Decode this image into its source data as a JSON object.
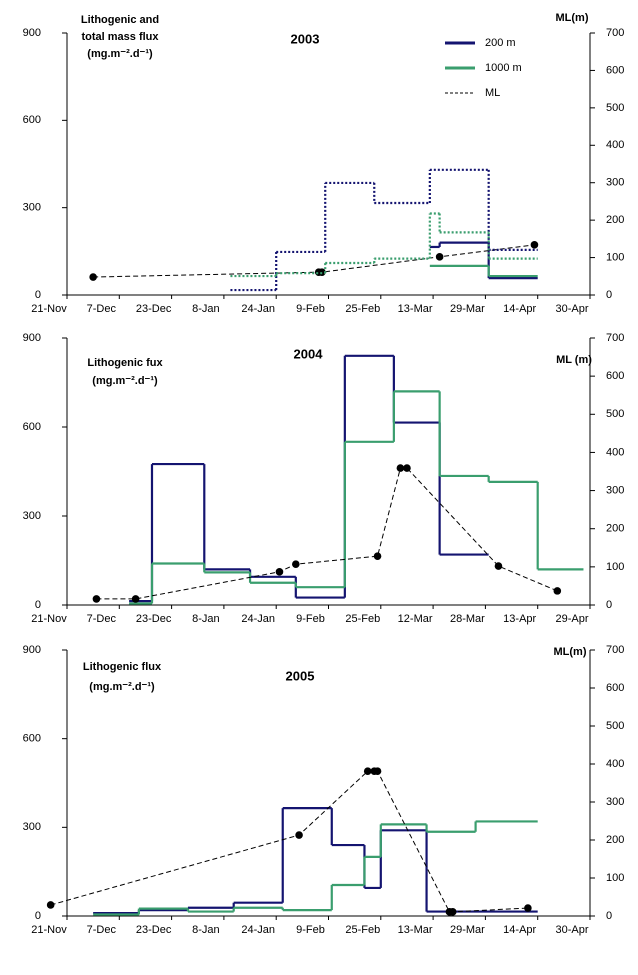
{
  "chart_data": [
    {
      "type": "step",
      "title": "2003",
      "ylabel": [
        "Lithogenic and",
        "total mass flux",
        "(mg.m⁻².d⁻¹)"
      ],
      "y2label": "ML(m)",
      "xlim": [
        0,
        160
      ],
      "xticks": [
        {
          "value": 0,
          "label": "21-Nov"
        },
        {
          "value": 16,
          "label": "7-Dec"
        },
        {
          "value": 32,
          "label": "23-Dec"
        },
        {
          "value": 48,
          "label": "8-Jan"
        },
        {
          "value": 64,
          "label": "24-Jan"
        },
        {
          "value": 80,
          "label": "9-Feb"
        },
        {
          "value": 96,
          "label": "25-Feb"
        },
        {
          "value": 112,
          "label": "13-Mar"
        },
        {
          "value": 128,
          "label": "29-Mar"
        },
        {
          "value": 144,
          "label": "14-Apr"
        },
        {
          "value": 160,
          "label": "30-Apr"
        }
      ],
      "ylim": [
        0,
        900
      ],
      "yticks": [
        0,
        300,
        600,
        900
      ],
      "y2lim": [
        0,
        700
      ],
      "y2ticks": [
        0,
        100,
        200,
        300,
        400,
        500,
        600,
        700
      ],
      "legend": "upper right",
      "series": [
        {
          "name": "200 m",
          "color": "#141470",
          "style": "solid",
          "bins": [
            111,
            114,
            129,
            144
          ],
          "values": [
            165,
            180,
            58
          ]
        },
        {
          "name": "1000 m",
          "color": "#3a9e6e",
          "style": "solid",
          "bins": [
            111,
            129,
            144
          ],
          "values": [
            100,
            65
          ]
        },
        {
          "name": "ML",
          "color": "#000000",
          "style": "dashed-markers",
          "axis": "y2",
          "x": [
            8,
            77,
            78,
            114,
            143
          ],
          "values": [
            48,
            61,
            61,
            102,
            134
          ]
        },
        {
          "color": "#141470",
          "style": "dotted",
          "bins": [
            50,
            64,
            79,
            94,
            111,
            129,
            144
          ],
          "values": [
            17,
            148,
            385,
            316,
            430,
            155
          ]
        },
        {
          "color": "#3a9e6e",
          "style": "dotted",
          "bins": [
            50,
            64,
            79,
            94,
            111,
            114,
            129,
            144
          ],
          "values": [
            65,
            75,
            110,
            125,
            280,
            215,
            125
          ]
        }
      ]
    },
    {
      "type": "step",
      "title": "2004",
      "ylabel": [
        "Lithogenic fux",
        "(mg.m⁻².d⁻¹)"
      ],
      "y2label": "ML (m)",
      "xlim": [
        0,
        160
      ],
      "xticks": [
        {
          "value": 0,
          "label": "21-Nov"
        },
        {
          "value": 16,
          "label": "7-Dec"
        },
        {
          "value": 32,
          "label": "23-Dec"
        },
        {
          "value": 48,
          "label": "8-Jan"
        },
        {
          "value": 64,
          "label": "24-Jan"
        },
        {
          "value": 80,
          "label": "9-Feb"
        },
        {
          "value": 96,
          "label": "25-Feb"
        },
        {
          "value": 112,
          "label": "12-Mar"
        },
        {
          "value": 128,
          "label": "28-Mar"
        },
        {
          "value": 144,
          "label": "13-Apr"
        },
        {
          "value": 160,
          "label": "29-Apr"
        }
      ],
      "ylim": [
        0,
        900
      ],
      "yticks": [
        0,
        300,
        600,
        900
      ],
      "y2lim": [
        0,
        700
      ],
      "y2ticks": [
        0,
        100,
        200,
        300,
        400,
        500,
        600,
        700
      ],
      "series": [
        {
          "color": "#141470",
          "style": "solid",
          "bins": [
            19,
            26,
            42,
            56,
            70,
            85,
            100,
            114,
            129
          ],
          "values": [
            13,
            475,
            120,
            95,
            25,
            840,
            615,
            170
          ]
        },
        {
          "color": "#3a9e6e",
          "style": "solid",
          "bins": [
            19,
            26,
            42,
            56,
            70,
            85,
            100,
            114,
            129,
            144,
            158
          ],
          "values": [
            5,
            140,
            110,
            75,
            60,
            550,
            720,
            435,
            415,
            120
          ]
        },
        {
          "color": "#000000",
          "style": "dashed-markers",
          "axis": "y2",
          "x": [
            9,
            21,
            65,
            70,
            95,
            102,
            104,
            132,
            150
          ],
          "values": [
            16,
            16,
            87,
            107,
            128,
            359,
            359,
            102,
            37
          ]
        }
      ]
    },
    {
      "type": "step",
      "title": "2005",
      "ylabel": [
        "Lithogenic flux",
        "(mg.m⁻².d⁻¹)"
      ],
      "y2label": "ML(m)",
      "xlim": [
        0,
        160
      ],
      "xticks": [
        {
          "value": 0,
          "label": "21-Nov"
        },
        {
          "value": 16,
          "label": "7-Dec"
        },
        {
          "value": 32,
          "label": "23-Dec"
        },
        {
          "value": 48,
          "label": "8-Jan"
        },
        {
          "value": 64,
          "label": "24-Jan"
        },
        {
          "value": 80,
          "label": "9-Feb"
        },
        {
          "value": 96,
          "label": "25-Feb"
        },
        {
          "value": 112,
          "label": "13-Mar"
        },
        {
          "value": 128,
          "label": "29-Mar"
        },
        {
          "value": 144,
          "label": "14-Apr"
        },
        {
          "value": 160,
          "label": "30-Apr"
        }
      ],
      "ylim": [
        0,
        900
      ],
      "yticks": [
        0,
        300,
        600,
        900
      ],
      "y2lim": [
        0,
        700
      ],
      "y2ticks": [
        0,
        100,
        200,
        300,
        400,
        500,
        600,
        700
      ],
      "series": [
        {
          "color": "#141470",
          "style": "solid",
          "bins": [
            8,
            22,
            37,
            51,
            66,
            81,
            91,
            96,
            110,
            144
          ],
          "values": [
            10,
            20,
            28,
            45,
            365,
            240,
            95,
            290,
            15
          ]
        },
        {
          "color": "#3a9e6e",
          "style": "solid",
          "bins": [
            8,
            22,
            37,
            51,
            66,
            81,
            91,
            96,
            110,
            125,
            144
          ],
          "values": [
            5,
            25,
            15,
            28,
            20,
            105,
            200,
            310,
            285,
            320
          ]
        },
        {
          "color": "#000000",
          "style": "dashed-markers",
          "axis": "y2",
          "x": [
            -5,
            71,
            92,
            94,
            95,
            117,
            118,
            141
          ],
          "values": [
            29,
            213,
            381,
            381,
            381,
            11,
            11,
            21
          ]
        }
      ]
    }
  ]
}
